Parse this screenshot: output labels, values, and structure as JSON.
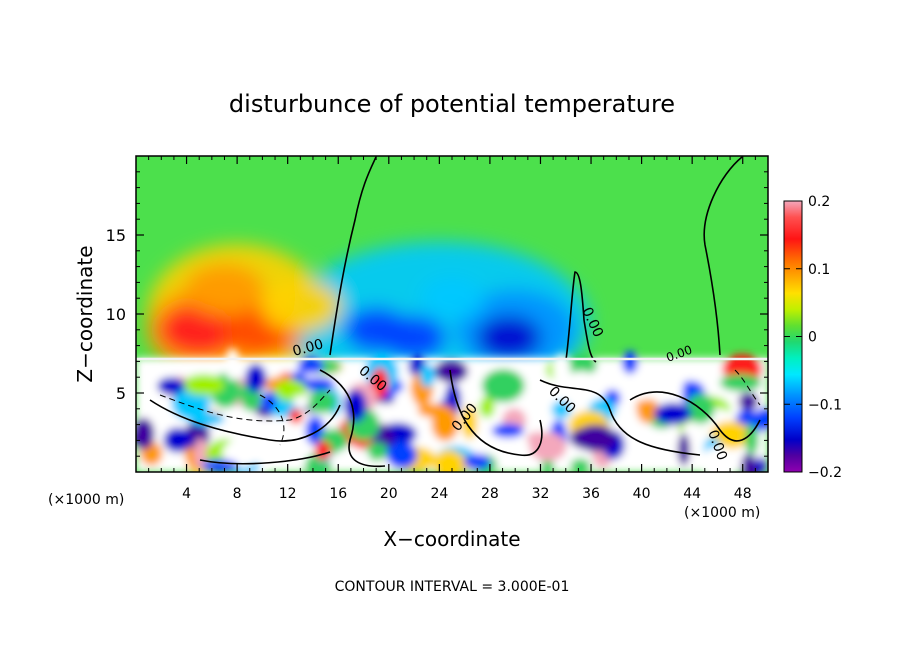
{
  "chart_data": {
    "type": "heatmap",
    "title": "disturbunce of potential temperature",
    "xlabel": "X−coordinate",
    "ylabel": "Z−coordinate",
    "xunit": "(×1000 m)",
    "xunit_right": "(×1000 m)",
    "xlim": [
      0,
      50
    ],
    "ylim": [
      0,
      20
    ],
    "x_ticks": [
      4,
      8,
      12,
      16,
      20,
      24,
      28,
      32,
      36,
      40,
      44,
      48
    ],
    "x_tick_labels": [
      "4",
      "8",
      "12",
      "16",
      "20",
      "24",
      "28",
      "32",
      "36",
      "40",
      "44",
      "48"
    ],
    "y_ticks": [
      5,
      10,
      15
    ],
    "y_tick_labels": [
      "5",
      "10",
      "15"
    ],
    "colorbar": {
      "range": [
        -0.2,
        0.2
      ],
      "ticks": [
        0.2,
        0.1,
        0,
        -0.1,
        -0.2
      ],
      "tick_labels": [
        "0.2",
        "0.1",
        "0",
        "−0.1",
        "−0.2"
      ],
      "colors": [
        "#f0a0b8",
        "#ff6060",
        "#ff1c1c",
        "#ff6a00",
        "#ffa000",
        "#ffd200",
        "#e0f000",
        "#a0f000",
        "#50e840",
        "#20d860",
        "#00e890",
        "#00ffff",
        "#00c8ff",
        "#0090ff",
        "#0040ff",
        "#0000d0",
        "#4000a0",
        "#8000b0"
      ]
    },
    "contour_labels": [
      "0.00",
      "0.00",
      "0.00",
      "0.00",
      "0.00",
      "0.00",
      "0.00"
    ],
    "footer": "CONTOUR INTERVAL =  3.000E-01",
    "upper_field": {
      "description_free": true,
      "hot_spots": [
        {
          "x": 5,
          "z": 9,
          "value": 0.15
        },
        {
          "x": 10,
          "z": 9,
          "value": 0.13
        },
        {
          "x": 7,
          "z": 11.5,
          "value": 0.09
        },
        {
          "x": 13,
          "z": 10.5,
          "value": 0.06
        }
      ],
      "cold_spots": [
        {
          "x": 19,
          "z": 9,
          "value": -0.12
        },
        {
          "x": 22,
          "z": 8.5,
          "value": -0.11
        },
        {
          "x": 29.5,
          "z": 8.5,
          "value": -0.16
        },
        {
          "x": 25,
          "z": 11,
          "value": -0.07
        }
      ]
    }
  }
}
